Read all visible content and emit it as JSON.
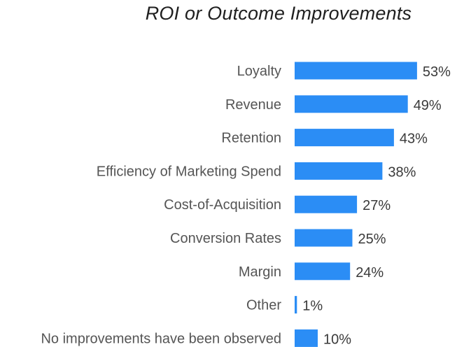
{
  "chart_data": {
    "type": "bar",
    "orientation": "horizontal",
    "title": "ROI or Outcome Improvements",
    "categories": [
      "Loyalty",
      "Revenue",
      "Retention",
      "Efficiency of Marketing Spend",
      "Cost-of-Acquisition",
      "Conversion Rates",
      "Margin",
      "Other",
      "No improvements have been observed"
    ],
    "values": [
      53,
      49,
      43,
      38,
      27,
      25,
      24,
      1,
      10
    ],
    "value_labels": [
      "53%",
      "49%",
      "43%",
      "38%",
      "27%",
      "25%",
      "24%",
      "1%",
      "10%"
    ],
    "unit": "%",
    "bar_color": "#2b8df5",
    "grid": false,
    "legend": "none",
    "xlim": [
      0,
      100
    ]
  }
}
